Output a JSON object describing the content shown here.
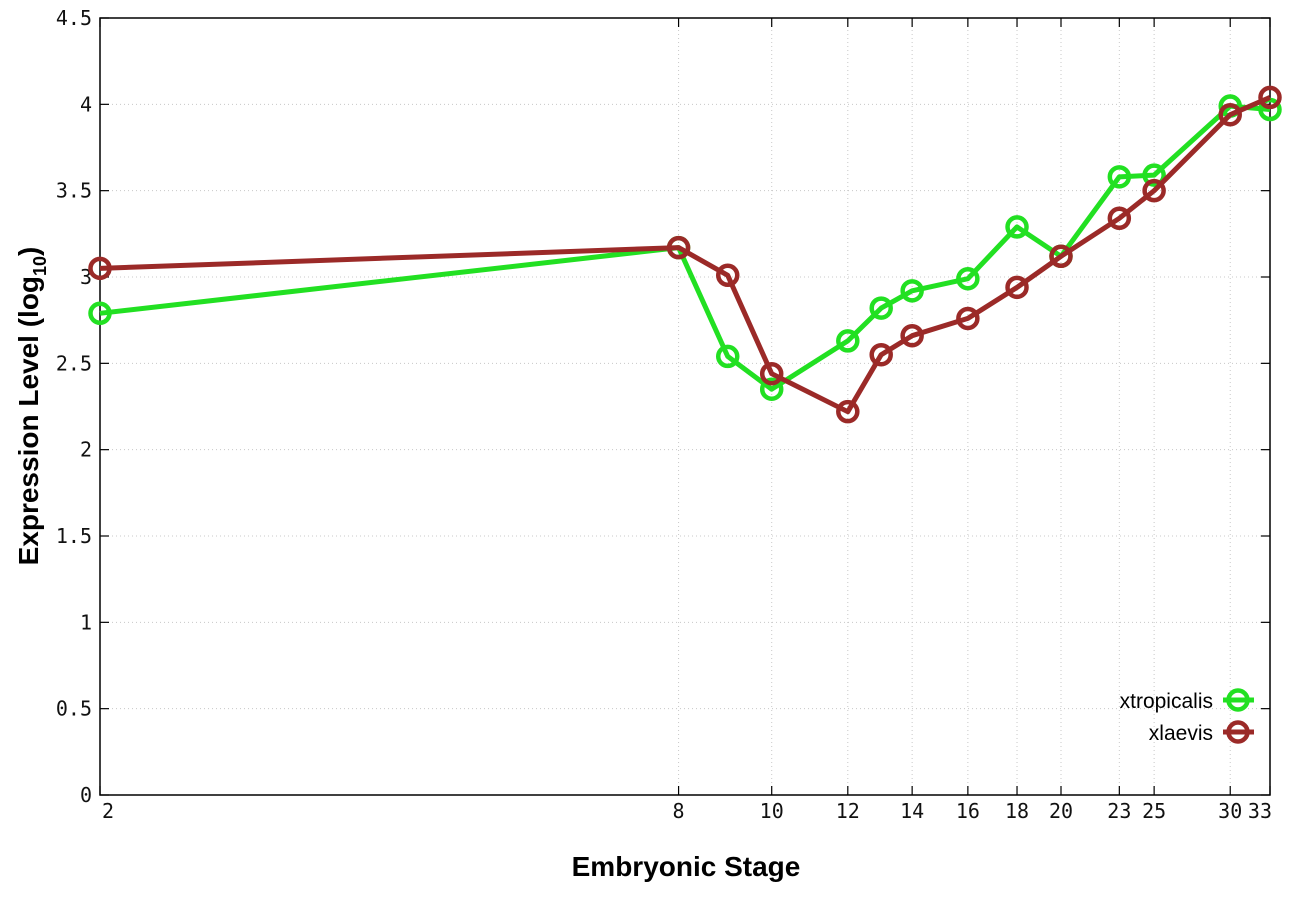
{
  "chart_data": {
    "type": "line",
    "title": "",
    "xlabel": "Embryonic Stage",
    "ylabel_main": "Expression Level (log",
    "ylabel_sub": "10",
    "ylabel_close": ")",
    "x_ticks": [
      2,
      8,
      10,
      12,
      14,
      16,
      18,
      20,
      23,
      25,
      30,
      33
    ],
    "y_ticks": [
      "0",
      "0.5",
      "1",
      "1.5",
      "2",
      "2.5",
      "3",
      "3.5",
      "4",
      "4.5"
    ],
    "xlim": [
      2,
      33
    ],
    "ylim": [
      0,
      4.5
    ],
    "x_scale": "log",
    "grid": true,
    "legend_position": "bottom-right",
    "series": [
      {
        "name": "xtropicalis",
        "color": "#22e022",
        "x": [
          2,
          8,
          9,
          10,
          12,
          13,
          14,
          16,
          18,
          20,
          23,
          25,
          30,
          33
        ],
        "y": [
          2.79,
          3.17,
          2.54,
          2.35,
          2.63,
          2.82,
          2.92,
          2.99,
          3.29,
          3.12,
          3.58,
          3.59,
          3.99,
          3.97
        ]
      },
      {
        "name": "xlaevis",
        "color": "#9b2a28",
        "x": [
          2,
          8,
          9,
          10,
          12,
          13,
          14,
          16,
          18,
          20,
          23,
          25,
          30,
          33
        ],
        "y": [
          3.05,
          3.17,
          3.01,
          2.44,
          2.22,
          2.55,
          2.66,
          2.76,
          2.94,
          3.12,
          3.34,
          3.5,
          3.94,
          4.04
        ]
      }
    ]
  }
}
